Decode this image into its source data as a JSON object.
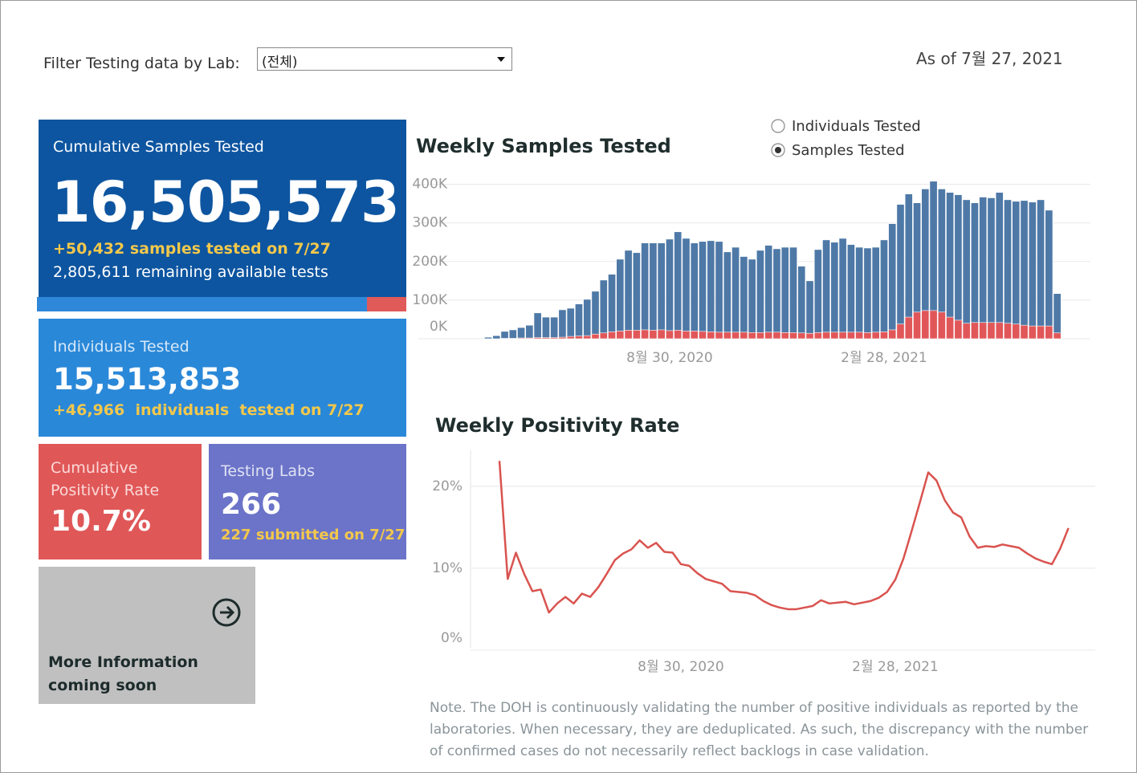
{
  "filter": {
    "label": "Filter Testing data by Lab:",
    "selected": "(전체)"
  },
  "as_of": "As of 7월 27, 2021",
  "cards": {
    "samples": {
      "title": "Cumulative Samples Tested",
      "value": "16,505,573",
      "change": "+50,432 samples tested on 7/27",
      "remaining": "2,805,611 remaining available tests"
    },
    "individuals": {
      "title": "Individuals Tested",
      "value": "15,513,853",
      "change": "+46,966  individuals  tested on 7/27"
    },
    "positivity": {
      "title": "Cumulative Positivity Rate",
      "value": "10.7%"
    },
    "labs": {
      "title": "Testing Labs",
      "value": "266",
      "change": "227 submitted on 7/27"
    },
    "more_info": {
      "text": "More Information coming soon"
    }
  },
  "toggle": {
    "options": [
      "Individuals Tested",
      "Samples Tested"
    ],
    "selected": 1
  },
  "chart_data": [
    {
      "type": "bar",
      "title": "Weekly Samples Tested",
      "categories": [
        null,
        null,
        null,
        null,
        null,
        null,
        null,
        null,
        null,
        null,
        null,
        null,
        null,
        null,
        null,
        null,
        null,
        null,
        null,
        null,
        null,
        null,
        "8월 30, 2020",
        null,
        null,
        null,
        null,
        null,
        null,
        null,
        null,
        null,
        null,
        null,
        null,
        null,
        null,
        null,
        null,
        null,
        null,
        null,
        null,
        null,
        null,
        null,
        null,
        null,
        "2월 28, 2021",
        null,
        null,
        null,
        null,
        null,
        null,
        null,
        null,
        null,
        null,
        null,
        null,
        null,
        null,
        null,
        null,
        null,
        null,
        null,
        null,
        null
      ],
      "series": [
        {
          "color": "#4e79a7",
          "values": [
            4000,
            8000,
            19000,
            23000,
            29000,
            35000,
            67000,
            56000,
            56000,
            75000,
            79000,
            90000,
            102000,
            123000,
            152000,
            167000,
            206000,
            229000,
            223000,
            248000,
            248000,
            248000,
            258000,
            277000,
            260000,
            248000,
            252000,
            254000,
            252000,
            225000,
            237000,
            213000,
            206000,
            229000,
            242000,
            233000,
            237000,
            237000,
            188000,
            150000,
            231000,
            256000,
            250000,
            260000,
            244000,
            237000,
            235000,
            237000,
            256000,
            298000,
            348000,
            375000,
            352000,
            388000,
            408000,
            388000,
            379000,
            373000,
            360000,
            352000,
            367000,
            365000,
            379000,
            360000,
            356000,
            358000,
            354000,
            360000,
            333000,
            117000
          ]
        },
        {
          "color": "#e15759",
          "values": [
            0,
            0,
            1000,
            1000,
            2000,
            2000,
            3000,
            3000,
            3000,
            4000,
            6000,
            7000,
            8000,
            12000,
            15000,
            18000,
            20000,
            22000,
            22000,
            23000,
            22000,
            23000,
            21000,
            22000,
            20000,
            20000,
            19000,
            18000,
            17000,
            17000,
            17000,
            17000,
            16000,
            16000,
            17000,
            17000,
            16000,
            16000,
            15000,
            14000,
            16000,
            17000,
            17000,
            17000,
            17000,
            17000,
            16000,
            17000,
            18000,
            23000,
            38000,
            56000,
            69000,
            73000,
            73000,
            69000,
            56000,
            48000,
            40000,
            42000,
            42000,
            42000,
            42000,
            40000,
            38000,
            35000,
            33000,
            33000,
            33000,
            15000
          ]
        }
      ],
      "ylim": [
        0,
        420000
      ],
      "yticks": [
        {
          "value": 0,
          "label": "0K"
        },
        {
          "value": 100000,
          "label": "100K"
        },
        {
          "value": 200000,
          "label": "200K"
        },
        {
          "value": 300000,
          "label": "300K"
        },
        {
          "value": 400000,
          "label": "400K"
        }
      ],
      "grid": true
    },
    {
      "type": "line",
      "title": "Weekly Positivity Rate",
      "categories": [
        null,
        null,
        null,
        null,
        null,
        null,
        null,
        null,
        null,
        null,
        null,
        null,
        null,
        null,
        null,
        null,
        null,
        null,
        null,
        null,
        null,
        null,
        "8월 30, 2020",
        null,
        null,
        null,
        null,
        null,
        null,
        null,
        null,
        null,
        null,
        null,
        null,
        null,
        null,
        null,
        null,
        null,
        null,
        null,
        null,
        null,
        null,
        null,
        null,
        null,
        "2월 28, 2021",
        null,
        null,
        null,
        null,
        null,
        null,
        null,
        null,
        null,
        null,
        null,
        null,
        null,
        null,
        null,
        null,
        null,
        null,
        null,
        null,
        null
      ],
      "series": [
        {
          "color": "#d9534f",
          "values": [
            23.1,
            8.7,
            11.9,
            9.3,
            7.2,
            7.4,
            4.6,
            5.7,
            6.5,
            5.7,
            6.9,
            6.5,
            7.7,
            9.3,
            11.0,
            11.8,
            12.3,
            13.4,
            12.5,
            13.1,
            12.0,
            11.9,
            10.5,
            10.3,
            9.4,
            8.7,
            8.4,
            8.1,
            7.2,
            7.1,
            7.0,
            6.7,
            6.0,
            5.5,
            5.2,
            5.0,
            5.0,
            5.2,
            5.4,
            6.1,
            5.7,
            5.8,
            5.9,
            5.6,
            5.8,
            6.0,
            6.4,
            7.1,
            8.6,
            11.2,
            14.6,
            18.1,
            21.7,
            20.7,
            18.3,
            16.8,
            16.2,
            13.9,
            12.5,
            12.7,
            12.6,
            12.9,
            12.7,
            12.5,
            11.8,
            11.2,
            10.8,
            10.5,
            12.4,
            14.9
          ]
        }
      ],
      "ylim": [
        0,
        24
      ],
      "yticks": [
        {
          "value": 0,
          "label": "0%"
        },
        {
          "value": 10,
          "label": "10%"
        },
        {
          "value": 20,
          "label": "20%"
        }
      ],
      "grid": true
    }
  ],
  "note": "Note. The DOH is continuously validating the number of positive individuals as reported by the laboratories. When necessary, they are deduplicated. As such, the discrepancy with the number of confirmed cases do not necessarily reflect backlogs in case validation."
}
